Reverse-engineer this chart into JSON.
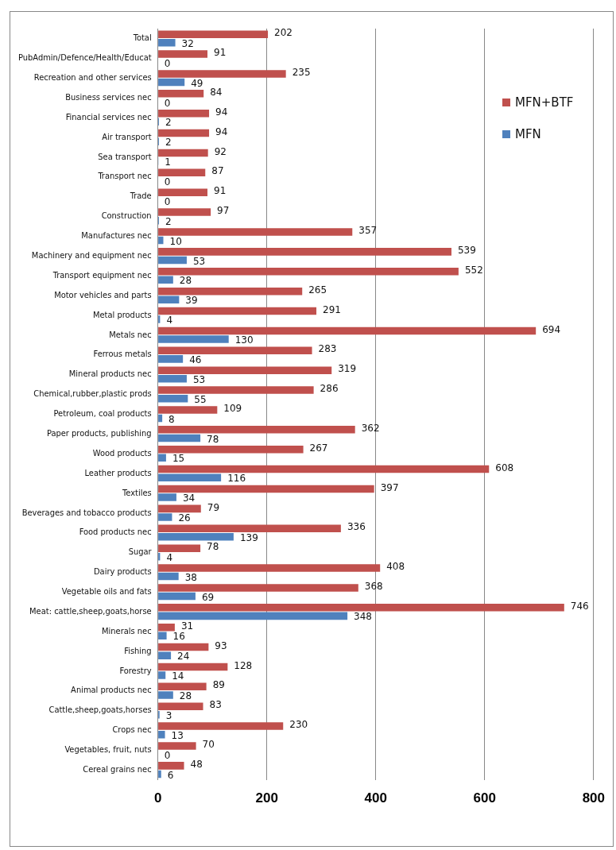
{
  "chart_data": {
    "type": "bar",
    "orientation": "horizontal",
    "categories": [
      "Total",
      "PubAdmin/Defence/Health/Educat",
      "Recreation and other services",
      "Business services nec",
      "Financial services nec",
      "Air transport",
      "Sea transport",
      "Transport nec",
      "Trade",
      "Construction",
      "Manufactures nec",
      "Machinery and equipment nec",
      "Transport equipment nec",
      "Motor vehicles and parts",
      "Metal products",
      "Metals nec",
      "Ferrous metals",
      "Mineral products nec",
      "Chemical,rubber,plastic prods",
      "Petroleum, coal products",
      "Paper products, publishing",
      "Wood products",
      "Leather products",
      "Textiles",
      "Beverages and tobacco products",
      "Food products nec",
      "Sugar",
      "Dairy products",
      "Vegetable oils and fats",
      "Meat: cattle,sheep,goats,horse",
      "Minerals nec",
      "Fishing",
      "Forestry",
      "Animal products nec",
      "Cattle,sheep,goats,horses",
      "Crops nec",
      "Vegetables, fruit, nuts",
      "Cereal grains nec"
    ],
    "series": [
      {
        "name": "MFN+BTF",
        "color": "#c0504d",
        "values": [
          202,
          91,
          235,
          84,
          94,
          94,
          92,
          87,
          91,
          97,
          357,
          539,
          552,
          265,
          291,
          694,
          283,
          319,
          286,
          109,
          362,
          267,
          608,
          397,
          79,
          336,
          78,
          408,
          368,
          746,
          31,
          93,
          128,
          89,
          83,
          230,
          70,
          48
        ]
      },
      {
        "name": "MFN",
        "color": "#4f81bd",
        "values": [
          32,
          0,
          49,
          0,
          2,
          2,
          1,
          0,
          0,
          2,
          10,
          53,
          28,
          39,
          4,
          130,
          46,
          53,
          55,
          8,
          78,
          15,
          116,
          34,
          26,
          139,
          4,
          38,
          69,
          348,
          16,
          24,
          14,
          28,
          3,
          13,
          0,
          6
        ]
      }
    ],
    "xlim": [
      0,
      800
    ],
    "xticks": [
      0,
      200,
      400,
      600,
      800
    ],
    "grid": "x",
    "legend": "top right",
    "data_labels": true
  }
}
